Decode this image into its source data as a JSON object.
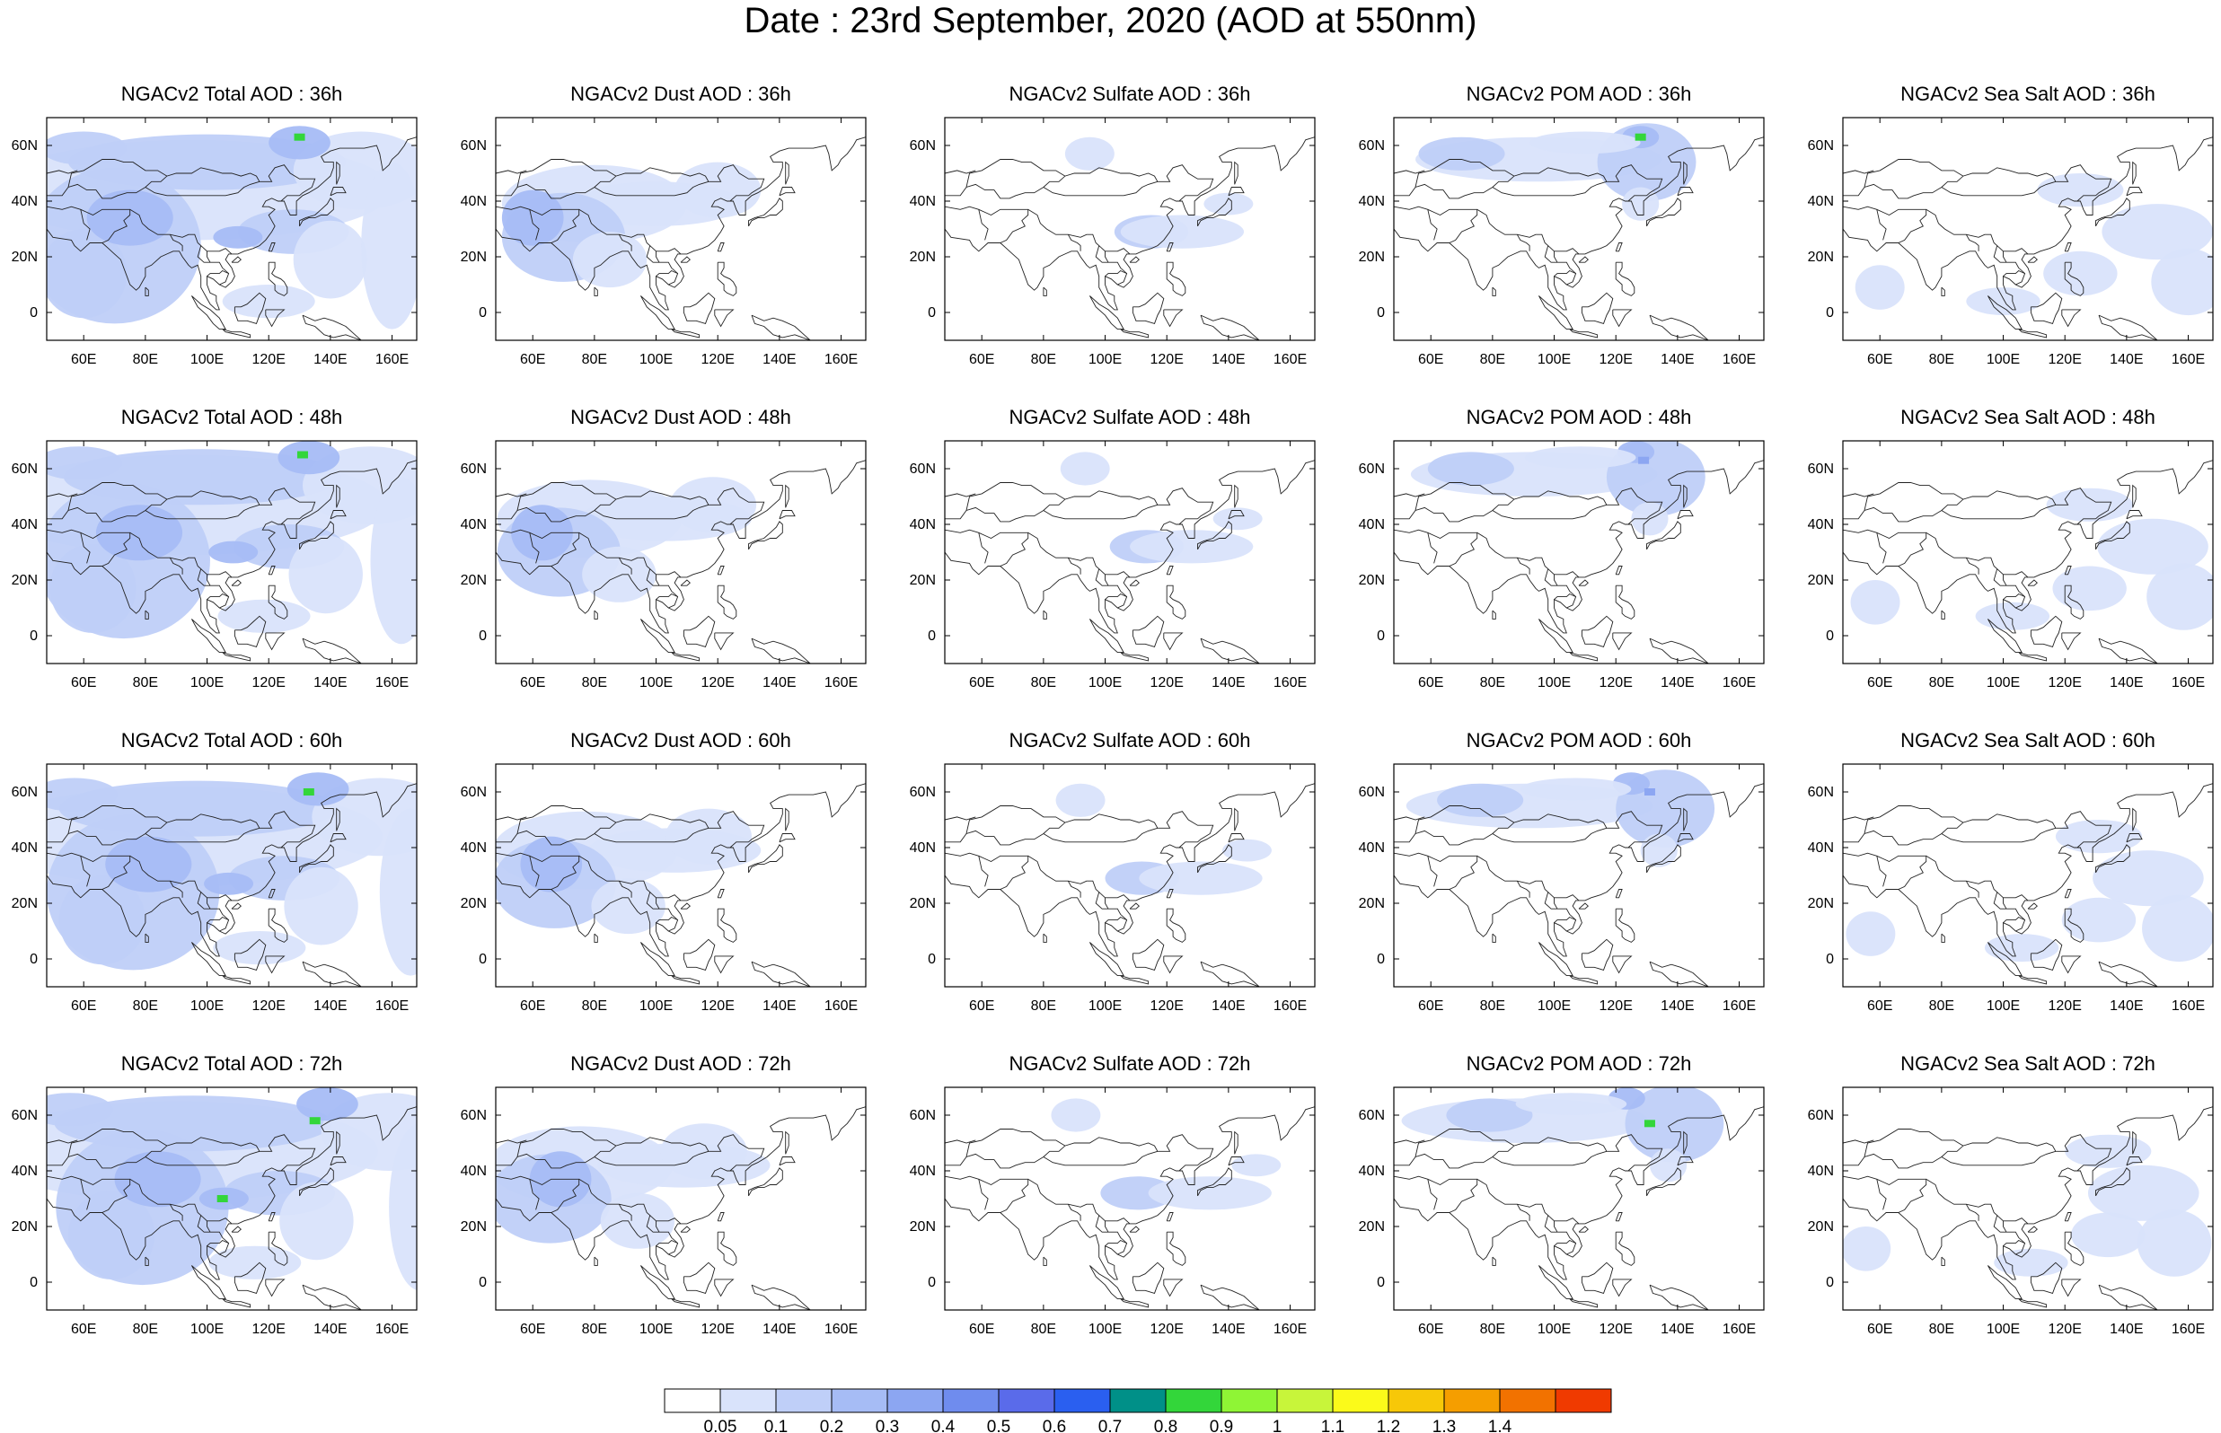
{
  "title": "Date : 23rd  September, 2020 (AOD at 550nm)",
  "rows": [
    "36h",
    "48h",
    "60h",
    "72h"
  ],
  "columns": [
    "Total",
    "Dust",
    "Sulfate",
    "POM",
    "Sea Salt"
  ],
  "panel_titles": [
    [
      "NGACv2 Total AOD : 36h",
      "NGACv2 Dust AOD : 36h",
      "NGACv2 Sulfate AOD : 36h",
      "NGACv2 POM AOD : 36h",
      "NGACv2 Sea Salt AOD : 36h"
    ],
    [
      "NGACv2 Total AOD : 48h",
      "NGACv2 Dust AOD : 48h",
      "NGACv2 Sulfate AOD : 48h",
      "NGACv2 POM AOD : 48h",
      "NGACv2 Sea Salt AOD : 48h"
    ],
    [
      "NGACv2 Total AOD : 60h",
      "NGACv2 Dust AOD : 60h",
      "NGACv2 Sulfate AOD : 60h",
      "NGACv2 POM AOD : 60h",
      "NGACv2 Sea Salt AOD : 60h"
    ],
    [
      "NGACv2 Total AOD : 72h",
      "NGACv2 Dust AOD : 72h",
      "NGACv2 Sulfate AOD : 72h",
      "NGACv2 POM AOD : 72h",
      "NGACv2 Sea Salt  AOD : 72h"
    ]
  ],
  "lon_ticks": [
    "60E",
    "80E",
    "100E",
    "120E",
    "140E",
    "160E"
  ],
  "lon_values": [
    60,
    80,
    100,
    120,
    140,
    160
  ],
  "lat_ticks": [
    "60N",
    "40N",
    "20N",
    "0"
  ],
  "lat_values": [
    60,
    40,
    20,
    0
  ],
  "map_extent": {
    "lon": [
      48,
      168
    ],
    "lat": [
      -10,
      70
    ]
  },
  "colorbar": {
    "labels": [
      "0.05",
      "0.1",
      "0.2",
      "0.3",
      "0.4",
      "0.5",
      "0.6",
      "0.7",
      "0.8",
      "0.9",
      "1",
      "1.1",
      "1.2",
      "1.3",
      "1.4"
    ],
    "colors": [
      "#ffffff",
      "#d9e3fb",
      "#bfcff8",
      "#a6bcf5",
      "#8ca6f2",
      "#6f8cee",
      "#5a6bea",
      "#2a5ff0",
      "#009088",
      "#33d63a",
      "#8ff535",
      "#c8f53a",
      "#fbfa1a",
      "#f7c808",
      "#f59e00",
      "#f27200",
      "#f03a00"
    ]
  },
  "fill_colors": {
    "level1": "#d9e3fb",
    "level2": "#bfcff8",
    "level3": "#a6bcf5",
    "level4": "#8ca6f2",
    "hot_green": "#33d63a",
    "hot_dark": "#5a6bea"
  }
}
